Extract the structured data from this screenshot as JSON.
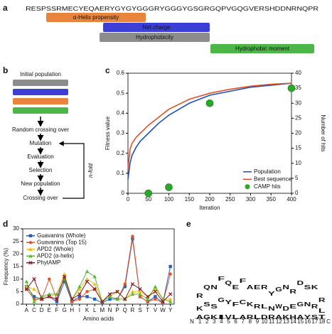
{
  "sequence_panel": {
    "panel_label": "a",
    "sequence": "RESPSSRMECYEQAERYGYGYGGGRYGGGYGSGRGQPVGQGVERSHDDNRNQPR",
    "bars": [
      {
        "label": "α-Helix propensity",
        "color": "#e8843c"
      },
      {
        "label": "Net charge",
        "color": "#3b3fd8"
      },
      {
        "label": "Hydrophobicity",
        "color": "#8c8c8c"
      },
      {
        "label": "Hydrophobic moment",
        "color": "#4cb648"
      }
    ]
  },
  "flow_panel": {
    "panel_label": "b",
    "steps": [
      "Initial population",
      "Random crossing over",
      "Mutation",
      "Evaluation",
      "Selection",
      "New population",
      "Crossing over"
    ],
    "bar_colors": [
      "#8c8c8c",
      "#3b3fd8",
      "#e8843c",
      "#4cb648"
    ],
    "loop_label": "n-fold"
  },
  "chart_data": [
    {
      "type": "line",
      "panel_label": "c",
      "xlabel": "Iteration",
      "ylabel": "Fitness value",
      "y2label": "Number of hits",
      "x": [
        0,
        5,
        10,
        20,
        30,
        50,
        75,
        100,
        150,
        200,
        250,
        300,
        350,
        400
      ],
      "xlim": [
        0,
        400
      ],
      "xticks": [
        0,
        50,
        100,
        150,
        200,
        250,
        300,
        350,
        400
      ],
      "ylim": [
        0,
        0.6
      ],
      "yticks": [
        0,
        0.1,
        0.2,
        0.3,
        0.4,
        0.5,
        0.6
      ],
      "y2lim": [
        0,
        40
      ],
      "y2ticks": [
        0,
        5,
        10,
        15,
        20,
        25,
        30,
        35,
        40
      ],
      "legend": "lower right",
      "series": [
        {
          "name": "Population",
          "color": "#1f4fbf",
          "marker": "none",
          "values": [
            0.07,
            0.15,
            0.19,
            0.23,
            0.26,
            0.3,
            0.35,
            0.39,
            0.45,
            0.49,
            0.51,
            0.53,
            0.54,
            0.55
          ]
        },
        {
          "name": "Best sequence",
          "color": "#e8501e",
          "marker": "none",
          "values": [
            0.12,
            0.22,
            0.25,
            0.28,
            0.3,
            0.34,
            0.38,
            0.42,
            0.47,
            0.5,
            0.52,
            0.535,
            0.545,
            0.55
          ]
        },
        {
          "name": "CAMP hits",
          "color": "#2aa82a",
          "marker": "bigcircle",
          "line": false,
          "axis": "y2",
          "x": [
            50,
            100,
            200,
            400
          ],
          "values": [
            0,
            2,
            30,
            35
          ]
        }
      ]
    },
    {
      "type": "line",
      "panel_label": "d",
      "xlabel": "Amino acids",
      "ylabel": "Frequency (%)",
      "categories": [
        "A",
        "C",
        "D",
        "E",
        "F",
        "G",
        "H",
        "I",
        "K",
        "L",
        "M",
        "N",
        "P",
        "Q",
        "R",
        "S",
        "T",
        "V",
        "W",
        "Y"
      ],
      "ylim": [
        0,
        30
      ],
      "yticks": [
        0,
        5,
        10,
        15,
        20,
        25,
        30
      ],
      "legend": "upper left",
      "series": [
        {
          "name": "Guavanins (Whole)",
          "color": "#1f5fbf",
          "marker": "square",
          "values": [
            7,
            3,
            2,
            3,
            1,
            9,
            1,
            3,
            3,
            2,
            0.5,
            2,
            2,
            7,
            26,
            3,
            1,
            3,
            0.5,
            15
          ]
        },
        {
          "name": "Guavanins (Top 15)",
          "color": "#e8501e",
          "marker": "circle",
          "values": [
            6,
            2,
            2,
            10,
            2,
            11,
            1,
            2,
            5,
            6,
            1,
            3,
            2,
            8,
            27,
            3,
            1,
            2,
            0.5,
            12
          ]
        },
        {
          "name": "APD2 (Whole)",
          "color": "#f0c020",
          "marker": "triangle",
          "values": [
            7,
            6,
            3,
            3,
            4,
            12,
            2,
            6,
            10,
            8,
            1,
            3,
            5,
            2,
            5,
            5,
            3,
            6,
            2,
            2
          ]
        },
        {
          "name": "APD2 (α-helix)",
          "color": "#5cb832",
          "marker": "triangle",
          "values": [
            9,
            1,
            3,
            4,
            4,
            10,
            2,
            7,
            13,
            11,
            1,
            3,
            2,
            2,
            4,
            4,
            2,
            7,
            2,
            1
          ]
        },
        {
          "name": "PhytAMP",
          "color": "#8a1a2a",
          "marker": "cross",
          "values": [
            6,
            10,
            2,
            3,
            2,
            11,
            2,
            4,
            9,
            6,
            1,
            4,
            5,
            2,
            8,
            6,
            3,
            5,
            1,
            4
          ]
        }
      ]
    }
  ],
  "logo_panel": {
    "panel_label": "e",
    "n_label": "N",
    "c_label": "C",
    "positions": [
      1,
      2,
      3,
      4,
      5,
      6,
      7,
      8,
      9,
      10,
      11,
      12,
      13,
      14,
      15,
      16,
      17,
      18
    ],
    "colors": {
      "R": "#1a3ccf",
      "K": "#1a3ccf",
      "H": "#1a3ccf",
      "D": "#d42020",
      "E": "#d42020",
      "N": "#c020c0",
      "Q": "#c020c0",
      "S": "#20a020",
      "G": "#20a020",
      "T": "#20a020",
      "Y": "#20a020",
      "C": "#20a020",
      "A": "#111111",
      "F": "#111111",
      "I": "#111111",
      "L": "#111111",
      "V": "#111111",
      "W": "#111111",
      "M": "#111111"
    },
    "columns": [
      {
        "letters": [
          "R",
          "K",
          "A"
        ],
        "heights": [
          2.8,
          0.6,
          0.4
        ]
      },
      {
        "letters": [
          "Q",
          "S",
          "G"
        ],
        "heights": [
          2.4,
          0.8,
          0.6
        ]
      },
      {
        "letters": [
          "N",
          "S",
          "K"
        ],
        "heights": [
          2.0,
          0.9,
          0.5
        ]
      },
      {
        "letters": [
          "F",
          "G",
          "I"
        ],
        "heights": [
          1.6,
          1.0,
          0.8
        ]
      },
      {
        "letters": [
          "Q",
          "Y",
          "V"
        ],
        "heights": [
          1.8,
          0.9,
          0.7
        ]
      },
      {
        "letters": [
          "E",
          "F",
          "L"
        ],
        "heights": [
          2.2,
          0.8,
          0.6
        ]
      },
      {
        "letters": [
          "F",
          "C",
          "A"
        ],
        "heights": [
          1.6,
          1.0,
          0.7
        ]
      },
      {
        "letters": [
          "A",
          "K",
          "R"
        ],
        "heights": [
          1.8,
          0.8,
          0.6
        ]
      },
      {
        "letters": [
          "E",
          "R",
          "L"
        ],
        "heights": [
          2.2,
          0.9,
          0.5
        ]
      },
      {
        "letters": [
          "R",
          "L",
          "D"
        ],
        "heights": [
          2.0,
          0.9,
          0.5
        ]
      },
      {
        "letters": [
          "Y",
          "N",
          "R"
        ],
        "heights": [
          2.4,
          0.7,
          0.4
        ]
      },
      {
        "letters": [
          "G",
          "W",
          "A"
        ],
        "heights": [
          2.6,
          0.8,
          0.5
        ]
      },
      {
        "letters": [
          "N",
          "D",
          "K"
        ],
        "heights": [
          2.2,
          1.0,
          0.4
        ]
      },
      {
        "letters": [
          "R",
          "E",
          "H"
        ],
        "heights": [
          2.3,
          0.7,
          0.5
        ]
      },
      {
        "letters": [
          "D",
          "G",
          "A"
        ],
        "heights": [
          1.8,
          1.0,
          0.6
        ]
      },
      {
        "letters": [
          "S",
          "N",
          "Y"
        ],
        "heights": [
          1.5,
          0.8,
          0.6
        ]
      },
      {
        "letters": [
          "K",
          "R",
          "S"
        ],
        "heights": [
          2.0,
          0.9,
          0.5
        ]
      },
      {
        "letters": [
          "R",
          "L",
          "T"
        ],
        "heights": [
          3.2,
          0.5,
          0.3
        ]
      }
    ]
  }
}
